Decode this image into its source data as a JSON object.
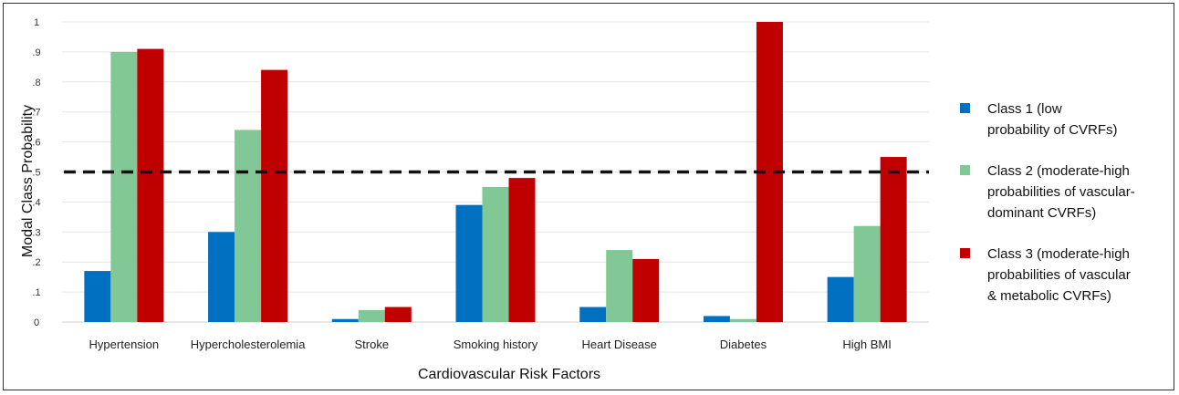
{
  "chart_data": {
    "type": "bar",
    "categories": [
      "Hypertension",
      "Hypercholesterolemia",
      "Stroke",
      "Smoking history",
      "Heart Disease",
      "Diabetes",
      "High BMI"
    ],
    "series": [
      {
        "name": "Class 1 (low\nprobability of CVRFs)",
        "color": "#0070c0",
        "values": [
          0.17,
          0.3,
          0.01,
          0.39,
          0.05,
          0.02,
          0.15
        ]
      },
      {
        "name": "Class 2 (moderate-high\nprobabilities of vascular-\ndominant CVRFs)",
        "color": "#82c896",
        "values": [
          0.9,
          0.64,
          0.04,
          0.45,
          0.24,
          0.01,
          0.32
        ]
      },
      {
        "name": "Class 3 (moderate-high\nprobabilities of vascular\n& metabolic CVRFs)",
        "color": "#c00000",
        "values": [
          0.91,
          0.84,
          0.05,
          0.48,
          0.21,
          1.0,
          0.55
        ]
      }
    ],
    "yticks": [
      "0",
      ".1",
      ".2",
      ".3",
      ".4",
      ".5",
      ".6",
      ".7",
      ".8",
      ".9",
      "1"
    ],
    "ylim": [
      0,
      1
    ],
    "reference_line": 0.5,
    "xlabel": "Cardiovascular  Risk Factors",
    "ylabel": "Modal Class Probability",
    "grid": true,
    "legend_position": "right"
  }
}
